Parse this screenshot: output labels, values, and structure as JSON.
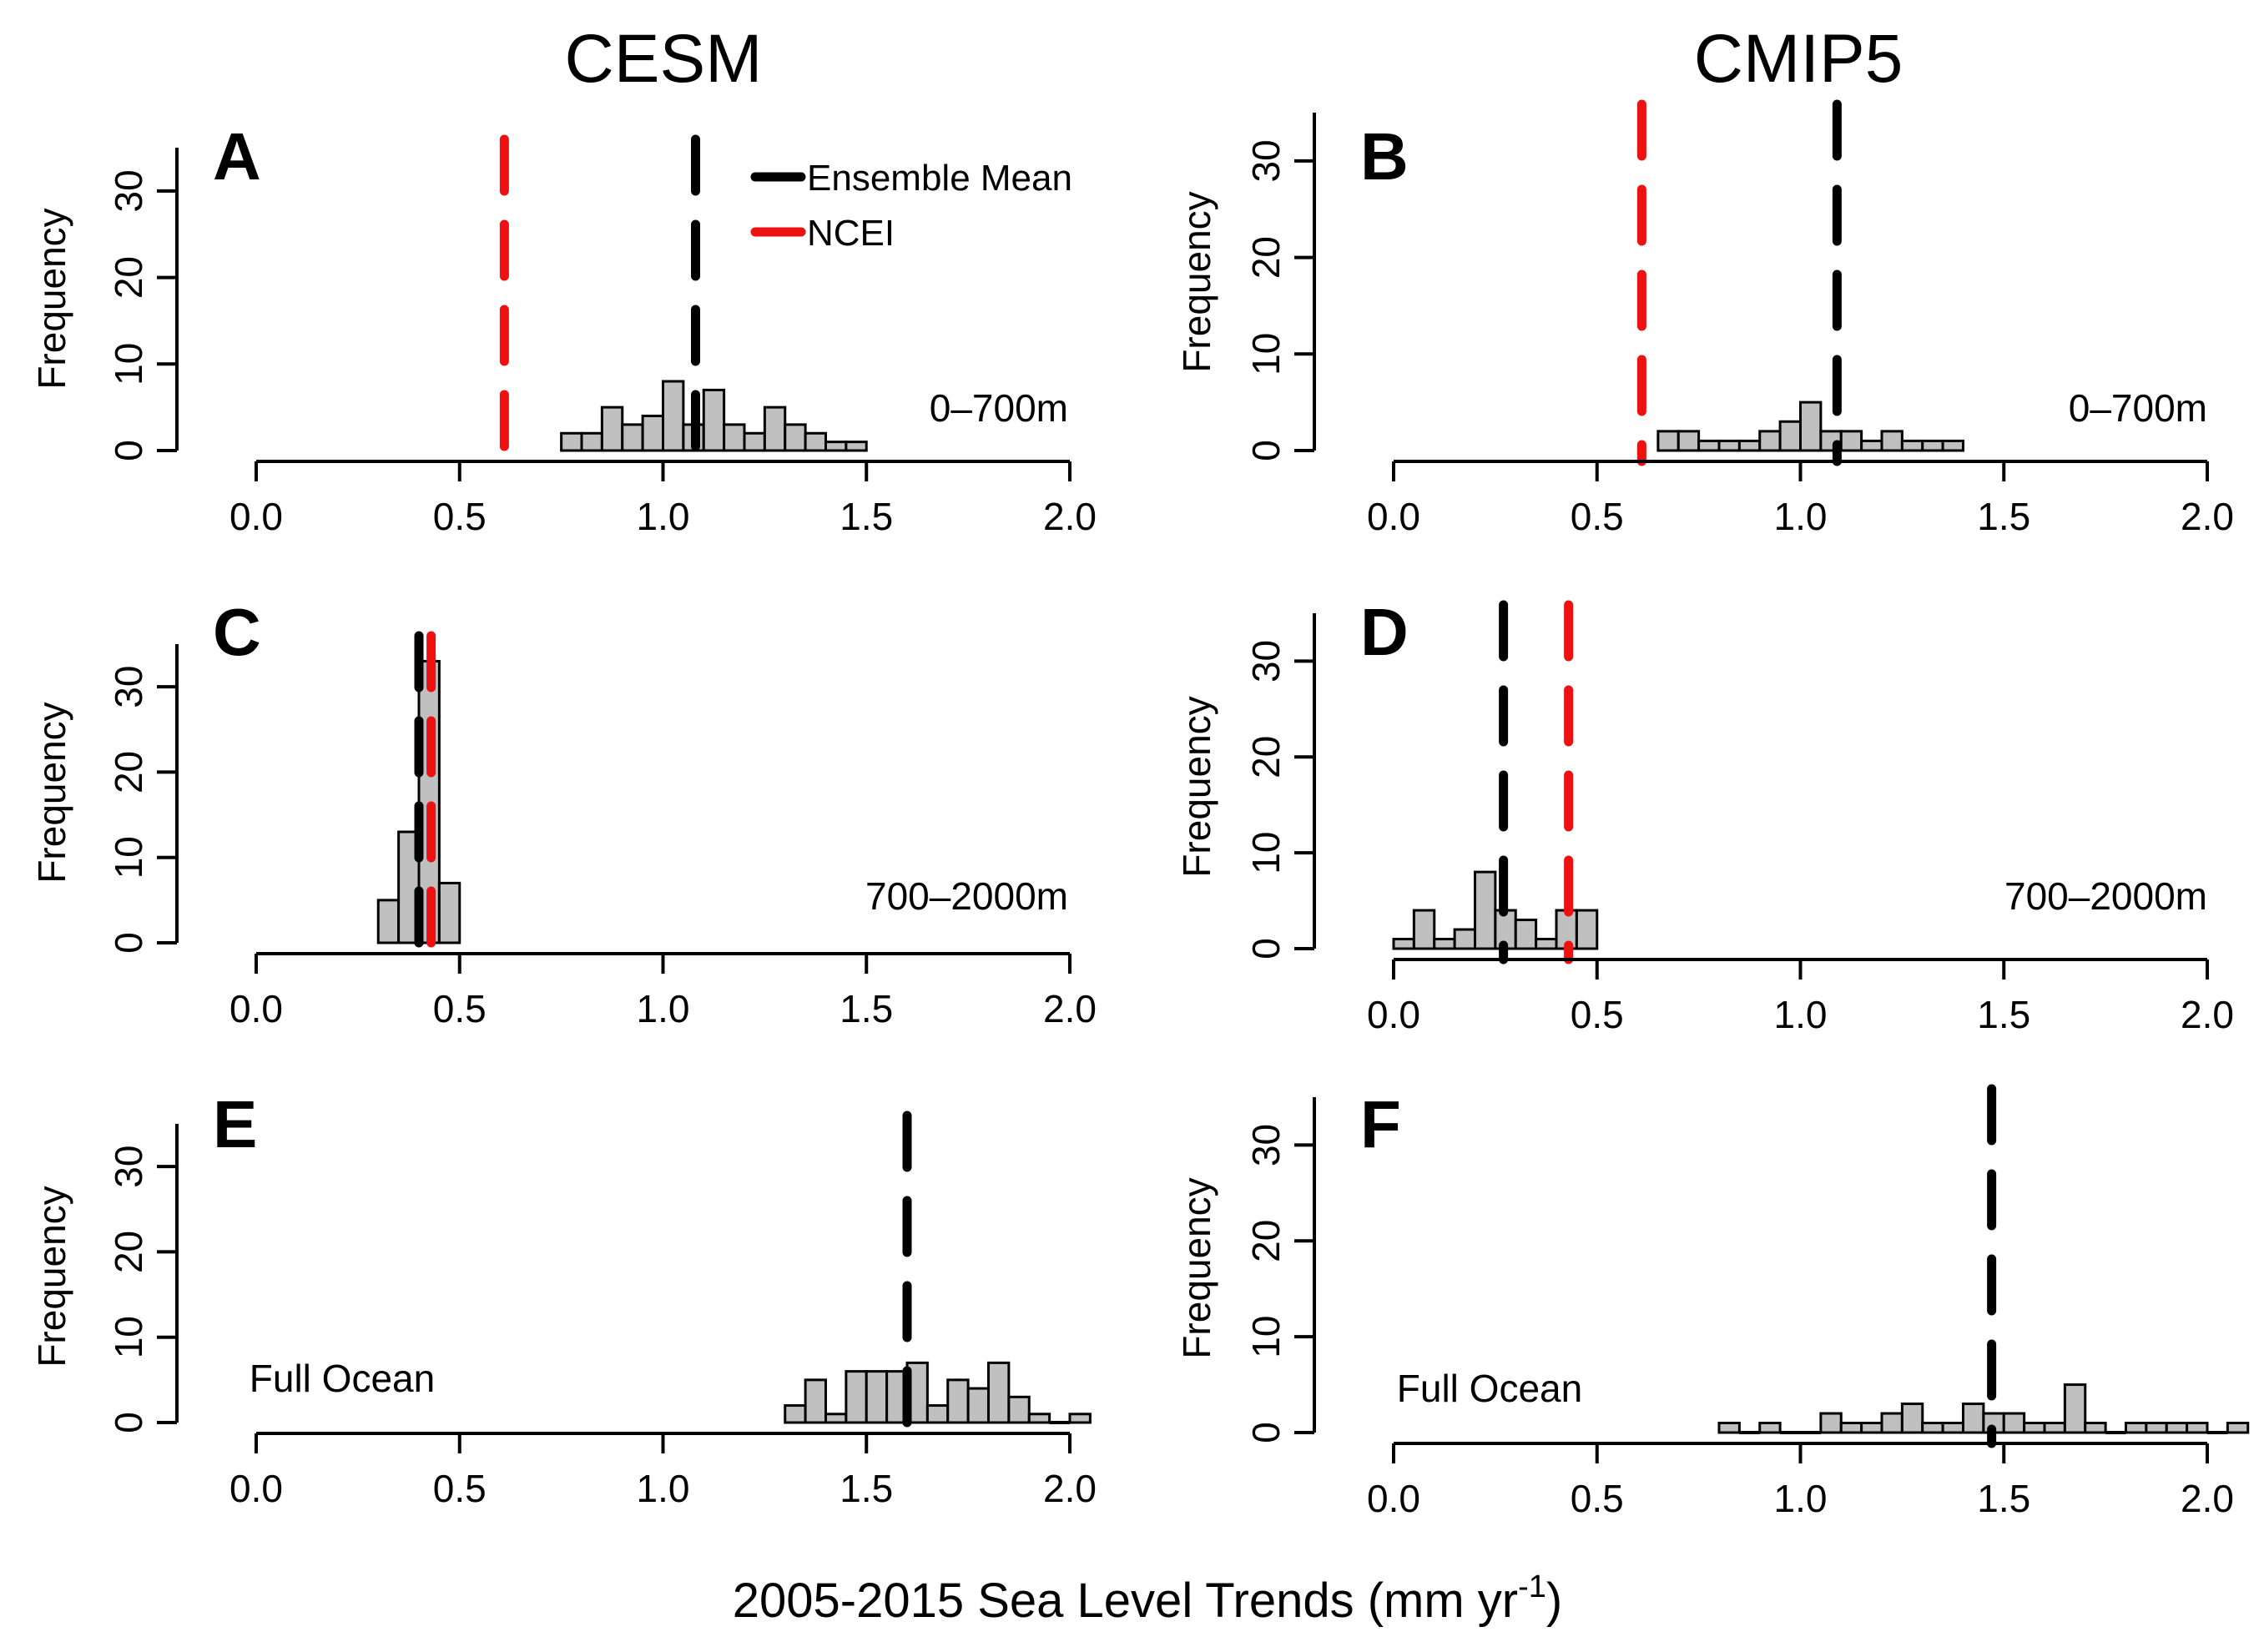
{
  "figure": {
    "column_titles": [
      "CESM",
      "CMIP5"
    ],
    "xlabel_main": "2005-2015 Sea Level Trends (mm yr",
    "xlabel_sup": "-1",
    "xlabel_end": ")",
    "legend": {
      "ensemble_mean": "Ensemble Mean",
      "ncei": "NCEI",
      "ensemble_color": "#000000",
      "ncei_color": "#ee1111"
    }
  },
  "chart_data": [
    {
      "id": "A",
      "type": "bar",
      "model": "CESM",
      "depth_label": "0–700m",
      "ylabel": "Frequency",
      "xlim": [
        0,
        2
      ],
      "ylim": [
        0,
        35
      ],
      "xticks": [
        "0.0",
        "0.5",
        "1.0",
        "1.5",
        "2.0"
      ],
      "yticks": [
        "0",
        "10",
        "20",
        "30"
      ],
      "bin_width": 0.05,
      "bin_starts": [
        0.75,
        0.8,
        0.85,
        0.9,
        0.95,
        1.0,
        1.05,
        1.1,
        1.15,
        1.2,
        1.25,
        1.3,
        1.35,
        1.4,
        1.45
      ],
      "values": [
        2,
        2,
        5,
        3,
        4,
        8,
        3,
        7,
        3,
        2,
        5,
        3,
        2,
        1,
        1
      ],
      "ensemble_mean": 1.08,
      "ncei": 0.61
    },
    {
      "id": "B",
      "type": "bar",
      "model": "CMIP5",
      "depth_label": "0–700m",
      "ylabel": "Frequency",
      "xlim": [
        0,
        2
      ],
      "ylim": [
        0,
        35
      ],
      "xticks": [
        "0.0",
        "0.5",
        "1.0",
        "1.5",
        "2.0"
      ],
      "yticks": [
        "0",
        "10",
        "20",
        "30"
      ],
      "bin_width": 0.05,
      "bin_starts": [
        0.65,
        0.7,
        0.75,
        0.8,
        0.85,
        0.9,
        0.95,
        1.0,
        1.05,
        1.1,
        1.15,
        1.2,
        1.25,
        1.3,
        1.35
      ],
      "values": [
        2,
        2,
        1,
        1,
        1,
        2,
        3,
        5,
        2,
        2,
        1,
        2,
        1,
        1,
        1
      ],
      "ensemble_mean": 1.09,
      "ncei": 0.61
    },
    {
      "id": "C",
      "type": "bar",
      "model": "CESM",
      "depth_label": "700–2000m",
      "ylabel": "Frequency",
      "xlim": [
        0,
        2
      ],
      "ylim": [
        0,
        35
      ],
      "xticks": [
        "0.0",
        "0.5",
        "1.0",
        "1.5",
        "2.0"
      ],
      "yticks": [
        "0",
        "10",
        "20",
        "30"
      ],
      "bin_width": 0.05,
      "bin_starts": [
        0.3,
        0.35,
        0.4,
        0.45
      ],
      "values": [
        5,
        13,
        33,
        7
      ],
      "ensemble_mean": 0.4,
      "ncei": 0.43
    },
    {
      "id": "D",
      "type": "bar",
      "model": "CMIP5",
      "depth_label": "700–2000m",
      "ylabel": "Frequency",
      "xlim": [
        0,
        2
      ],
      "ylim": [
        0,
        35
      ],
      "xticks": [
        "0.0",
        "0.5",
        "1.0",
        "1.5",
        "2.0"
      ],
      "yticks": [
        "0",
        "10",
        "20",
        "30"
      ],
      "bin_width": 0.05,
      "bin_starts": [
        0.0,
        0.05,
        0.1,
        0.15,
        0.2,
        0.25,
        0.3,
        0.35,
        0.4,
        0.45
      ],
      "values": [
        1,
        4,
        1,
        2,
        8,
        4,
        3,
        1,
        4,
        4
      ],
      "ensemble_mean": 0.27,
      "ncei": 0.43
    },
    {
      "id": "E",
      "type": "bar",
      "model": "CESM",
      "depth_label": "Full Ocean",
      "ylabel": "Frequency",
      "xlim": [
        0,
        2
      ],
      "ylim": [
        0,
        35
      ],
      "xticks": [
        "0.0",
        "0.5",
        "1.0",
        "1.5",
        "2.0"
      ],
      "yticks": [
        "0",
        "10",
        "20",
        "30"
      ],
      "bin_width": 0.05,
      "bin_starts": [
        1.3,
        1.35,
        1.4,
        1.45,
        1.5,
        1.55,
        1.6,
        1.65,
        1.7,
        1.75,
        1.8,
        1.85,
        1.9,
        1.95,
        2.0
      ],
      "values": [
        2,
        5,
        1,
        6,
        6,
        6,
        7,
        2,
        5,
        4,
        7,
        3,
        1,
        0,
        1
      ],
      "ensemble_mean": 1.6,
      "ncei": null
    },
    {
      "id": "F",
      "type": "bar",
      "model": "CMIP5",
      "depth_label": "Full Ocean",
      "ylabel": "Frequency",
      "xlim": [
        0,
        2
      ],
      "ylim": [
        0,
        35
      ],
      "xticks": [
        "0.0",
        "0.5",
        "1.0",
        "1.5",
        "2.0"
      ],
      "yticks": [
        "0",
        "10",
        "20",
        "30"
      ],
      "bin_width": 0.05,
      "bin_starts": [
        0.8,
        0.85,
        0.9,
        0.95,
        1.0,
        1.05,
        1.1,
        1.15,
        1.2,
        1.25,
        1.3,
        1.35,
        1.4,
        1.45,
        1.5,
        1.55,
        1.6,
        1.65,
        1.7,
        1.75,
        1.8,
        1.85,
        1.9,
        1.95,
        2.0,
        2.05
      ],
      "values": [
        1,
        0,
        1,
        0,
        0,
        2,
        1,
        1,
        2,
        3,
        1,
        1,
        3,
        2,
        2,
        1,
        1,
        5,
        1,
        0,
        1,
        1,
        1,
        1,
        0,
        1
      ],
      "ensemble_mean": 1.47,
      "ncei": null
    }
  ]
}
